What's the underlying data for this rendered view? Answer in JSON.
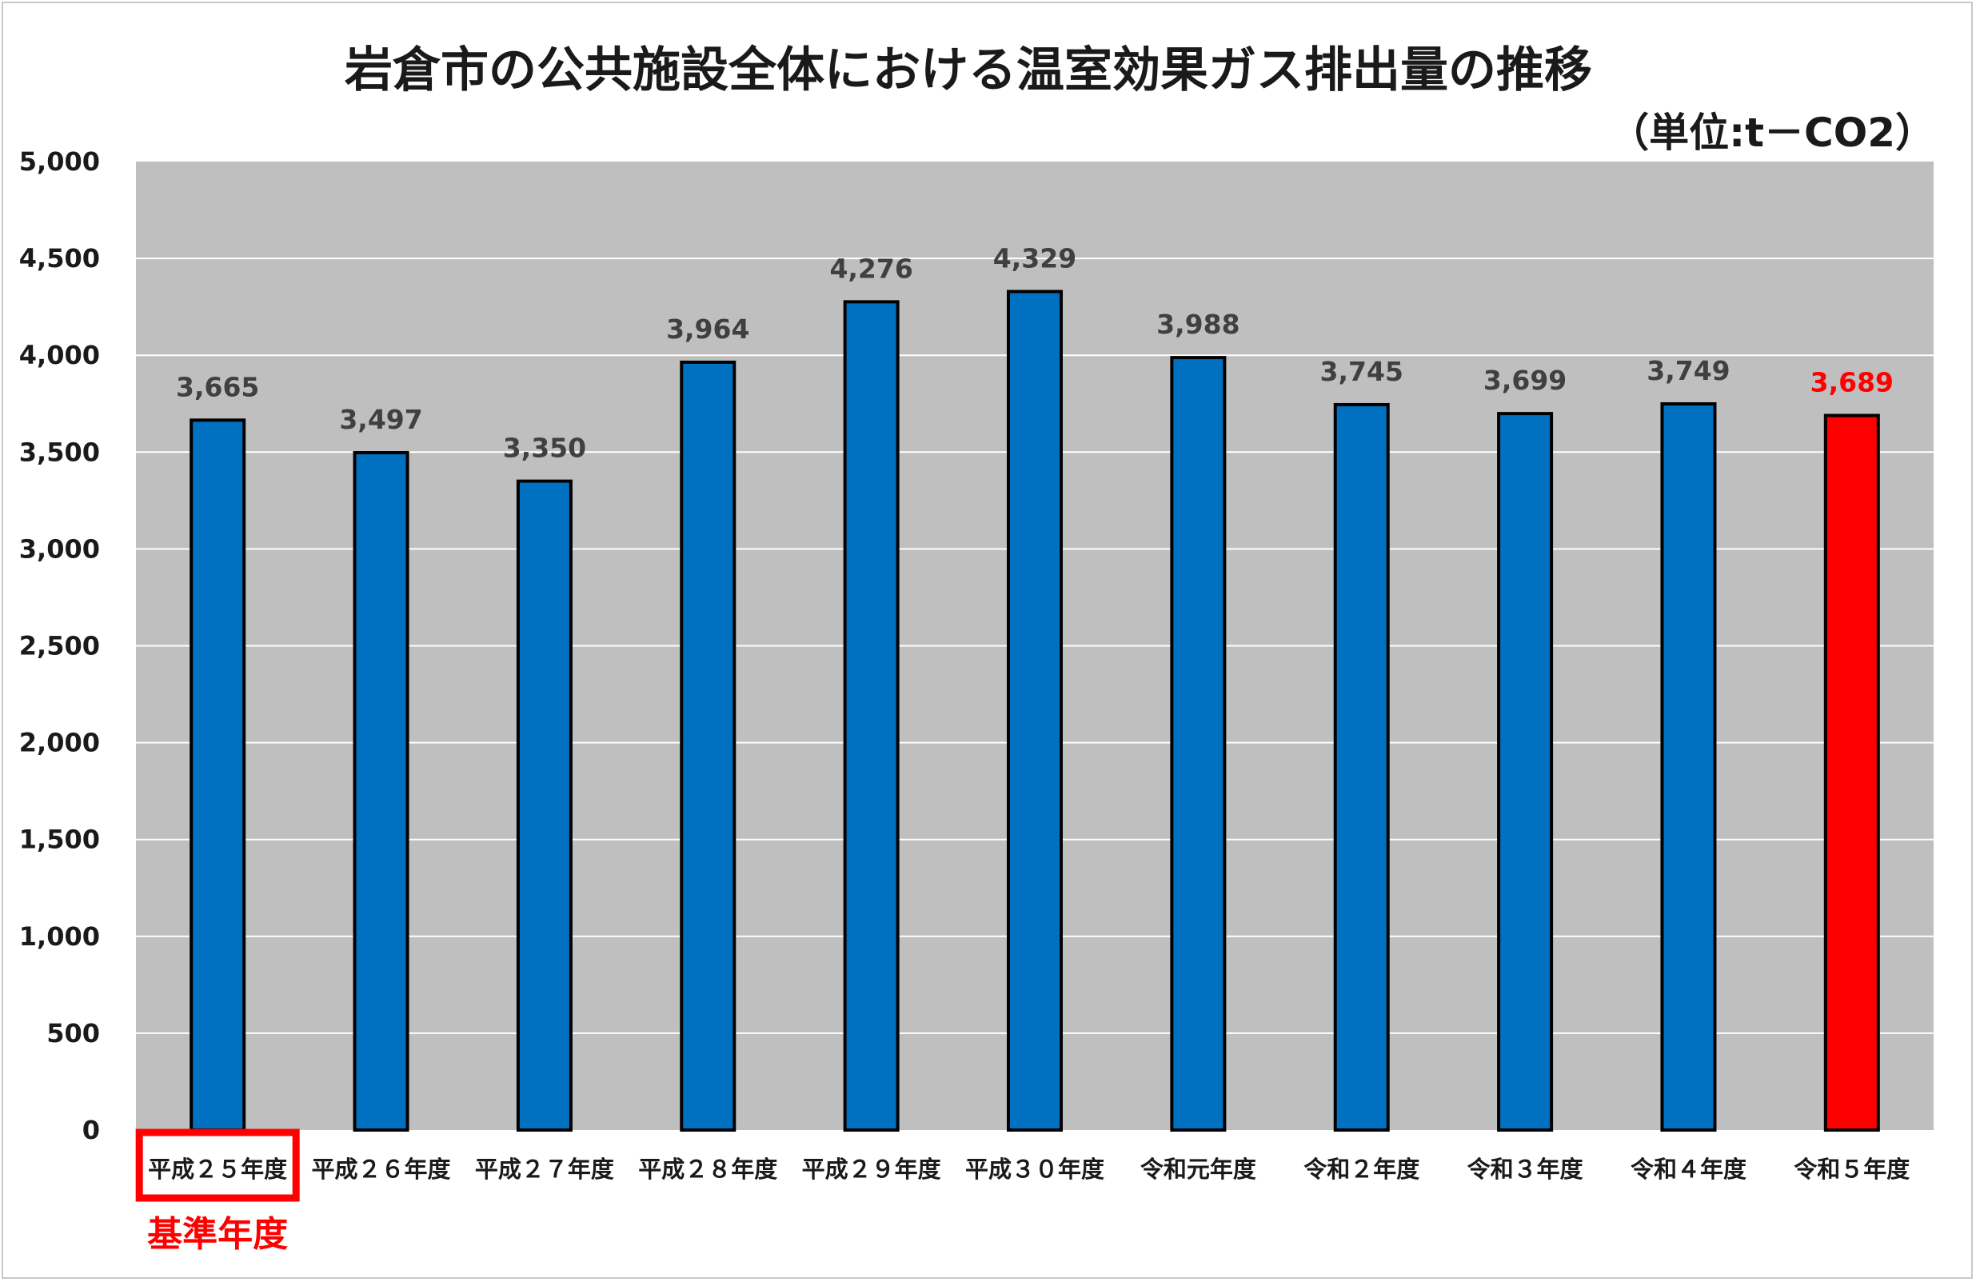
{
  "chart_data": {
    "type": "bar",
    "title": "岩倉市の公共施設全体における温室効果ガス排出量の推移",
    "unit_label": "（単位:t－CO2）",
    "categories": [
      "平成２５年度",
      "平成２６年度",
      "平成２７年度",
      "平成２８年度",
      "平成２９年度",
      "平成３０年度",
      "令和元年度",
      "令和２年度",
      "令和３年度",
      "令和４年度",
      "令和５年度"
    ],
    "values": [
      3665,
      3497,
      3350,
      3964,
      4276,
      4329,
      3988,
      3745,
      3699,
      3749,
      3689
    ],
    "value_labels": [
      "3,665",
      "3,497",
      "3,350",
      "3,964",
      "4,276",
      "4,329",
      "3,988",
      "3,745",
      "3,699",
      "3,749",
      "3,689"
    ],
    "ylim": [
      0,
      5000
    ],
    "yticks": [
      0,
      500,
      1000,
      1500,
      2000,
      2500,
      3000,
      3500,
      4000,
      4500,
      5000
    ],
    "ytick_labels": [
      "0",
      "500",
      "1,000",
      "1,500",
      "2,000",
      "2,500",
      "3,000",
      "3,500",
      "4,000",
      "4,500",
      "5,000"
    ],
    "grid": true,
    "colors": {
      "bar": "#0070c0",
      "highlight_bar": "#ff0000",
      "plot_bg": "#bfbfbf",
      "grid": "#ffffff",
      "base_box": "#ff0000"
    },
    "highlight_index": 10,
    "base_year_index": 0,
    "base_year_note": "基準年度"
  }
}
